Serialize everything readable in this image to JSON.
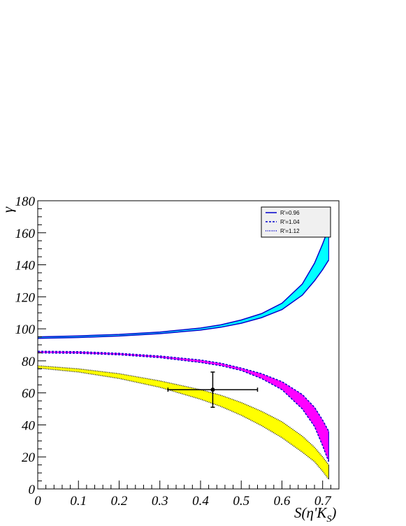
{
  "chart_data": {
    "type": "area",
    "xlabel": "S(η'K",
    "xlabel_sub": "S",
    "xlabel_close": ")",
    "ylabel": "γ",
    "xlim": [
      0,
      0.74
    ],
    "ylim": [
      0,
      180
    ],
    "x_ticks": [
      "0",
      "0.1",
      "0.2",
      "0.3",
      "0.4",
      "0.5",
      "0.6",
      "0.7"
    ],
    "y_ticks": [
      "0",
      "20",
      "40",
      "60",
      "80",
      "100",
      "120",
      "140",
      "160",
      "180"
    ],
    "x_tick_values": [
      0,
      0.1,
      0.2,
      0.3,
      0.4,
      0.5,
      0.6,
      0.7
    ],
    "y_tick_values": [
      0,
      20,
      40,
      60,
      80,
      100,
      120,
      140,
      160,
      180
    ],
    "legend": {
      "placement": "top-right",
      "entries": [
        {
          "label": "R'=0.96",
          "style": "solid"
        },
        {
          "label": "R'=1.04",
          "style": "dashed"
        },
        {
          "label": "R'=1.12",
          "style": "dotted"
        }
      ]
    },
    "series": [
      {
        "fill": "#00ffff",
        "upper": [
          [
            0,
            95
          ],
          [
            0.1,
            95.6
          ],
          [
            0.2,
            96.5
          ],
          [
            0.3,
            98
          ],
          [
            0.4,
            100.5
          ],
          [
            0.45,
            102.5
          ],
          [
            0.5,
            105.5
          ],
          [
            0.55,
            109.5
          ],
          [
            0.6,
            116
          ],
          [
            0.65,
            128
          ],
          [
            0.68,
            141
          ],
          [
            0.7,
            153
          ],
          [
            0.715,
            163
          ]
        ],
        "lower": [
          [
            0,
            94
          ],
          [
            0.1,
            94.6
          ],
          [
            0.2,
            95.5
          ],
          [
            0.3,
            97
          ],
          [
            0.4,
            99.2
          ],
          [
            0.45,
            101
          ],
          [
            0.5,
            103.5
          ],
          [
            0.55,
            107
          ],
          [
            0.6,
            112
          ],
          [
            0.65,
            121
          ],
          [
            0.68,
            130
          ],
          [
            0.7,
            137
          ],
          [
            0.715,
            143
          ]
        ]
      },
      {
        "fill": "#ff00ff",
        "upper": [
          [
            0,
            86
          ],
          [
            0.1,
            85.7
          ],
          [
            0.2,
            84.7
          ],
          [
            0.3,
            83
          ],
          [
            0.4,
            80.5
          ],
          [
            0.45,
            78.5
          ],
          [
            0.5,
            75.5
          ],
          [
            0.55,
            72
          ],
          [
            0.6,
            67
          ],
          [
            0.65,
            59
          ],
          [
            0.68,
            51
          ],
          [
            0.7,
            43
          ],
          [
            0.715,
            36
          ]
        ],
        "lower": [
          [
            0,
            85
          ],
          [
            0.1,
            84.7
          ],
          [
            0.2,
            83.8
          ],
          [
            0.3,
            82
          ],
          [
            0.4,
            79
          ],
          [
            0.45,
            77
          ],
          [
            0.5,
            74
          ],
          [
            0.55,
            69
          ],
          [
            0.6,
            62
          ],
          [
            0.65,
            50
          ],
          [
            0.68,
            39
          ],
          [
            0.7,
            27
          ],
          [
            0.715,
            17
          ]
        ]
      },
      {
        "fill": "#ffff00",
        "upper": [
          [
            0,
            77
          ],
          [
            0.1,
            75
          ],
          [
            0.2,
            72
          ],
          [
            0.3,
            67.5
          ],
          [
            0.4,
            62
          ],
          [
            0.45,
            58.5
          ],
          [
            0.5,
            54
          ],
          [
            0.55,
            48.5
          ],
          [
            0.6,
            42
          ],
          [
            0.65,
            33
          ],
          [
            0.68,
            26
          ],
          [
            0.7,
            20
          ],
          [
            0.715,
            15
          ]
        ],
        "lower": [
          [
            0,
            75.5
          ],
          [
            0.1,
            73
          ],
          [
            0.2,
            69
          ],
          [
            0.3,
            63.5
          ],
          [
            0.4,
            56
          ],
          [
            0.45,
            51.5
          ],
          [
            0.5,
            46
          ],
          [
            0.55,
            39.5
          ],
          [
            0.6,
            32
          ],
          [
            0.65,
            23
          ],
          [
            0.68,
            17
          ],
          [
            0.7,
            11
          ],
          [
            0.715,
            6
          ]
        ]
      }
    ],
    "measurement": {
      "x": 0.43,
      "y": 62,
      "xerr_low": 0.32,
      "xerr_high": 0.54,
      "yerr_low": 51,
      "yerr_high": 73
    }
  }
}
